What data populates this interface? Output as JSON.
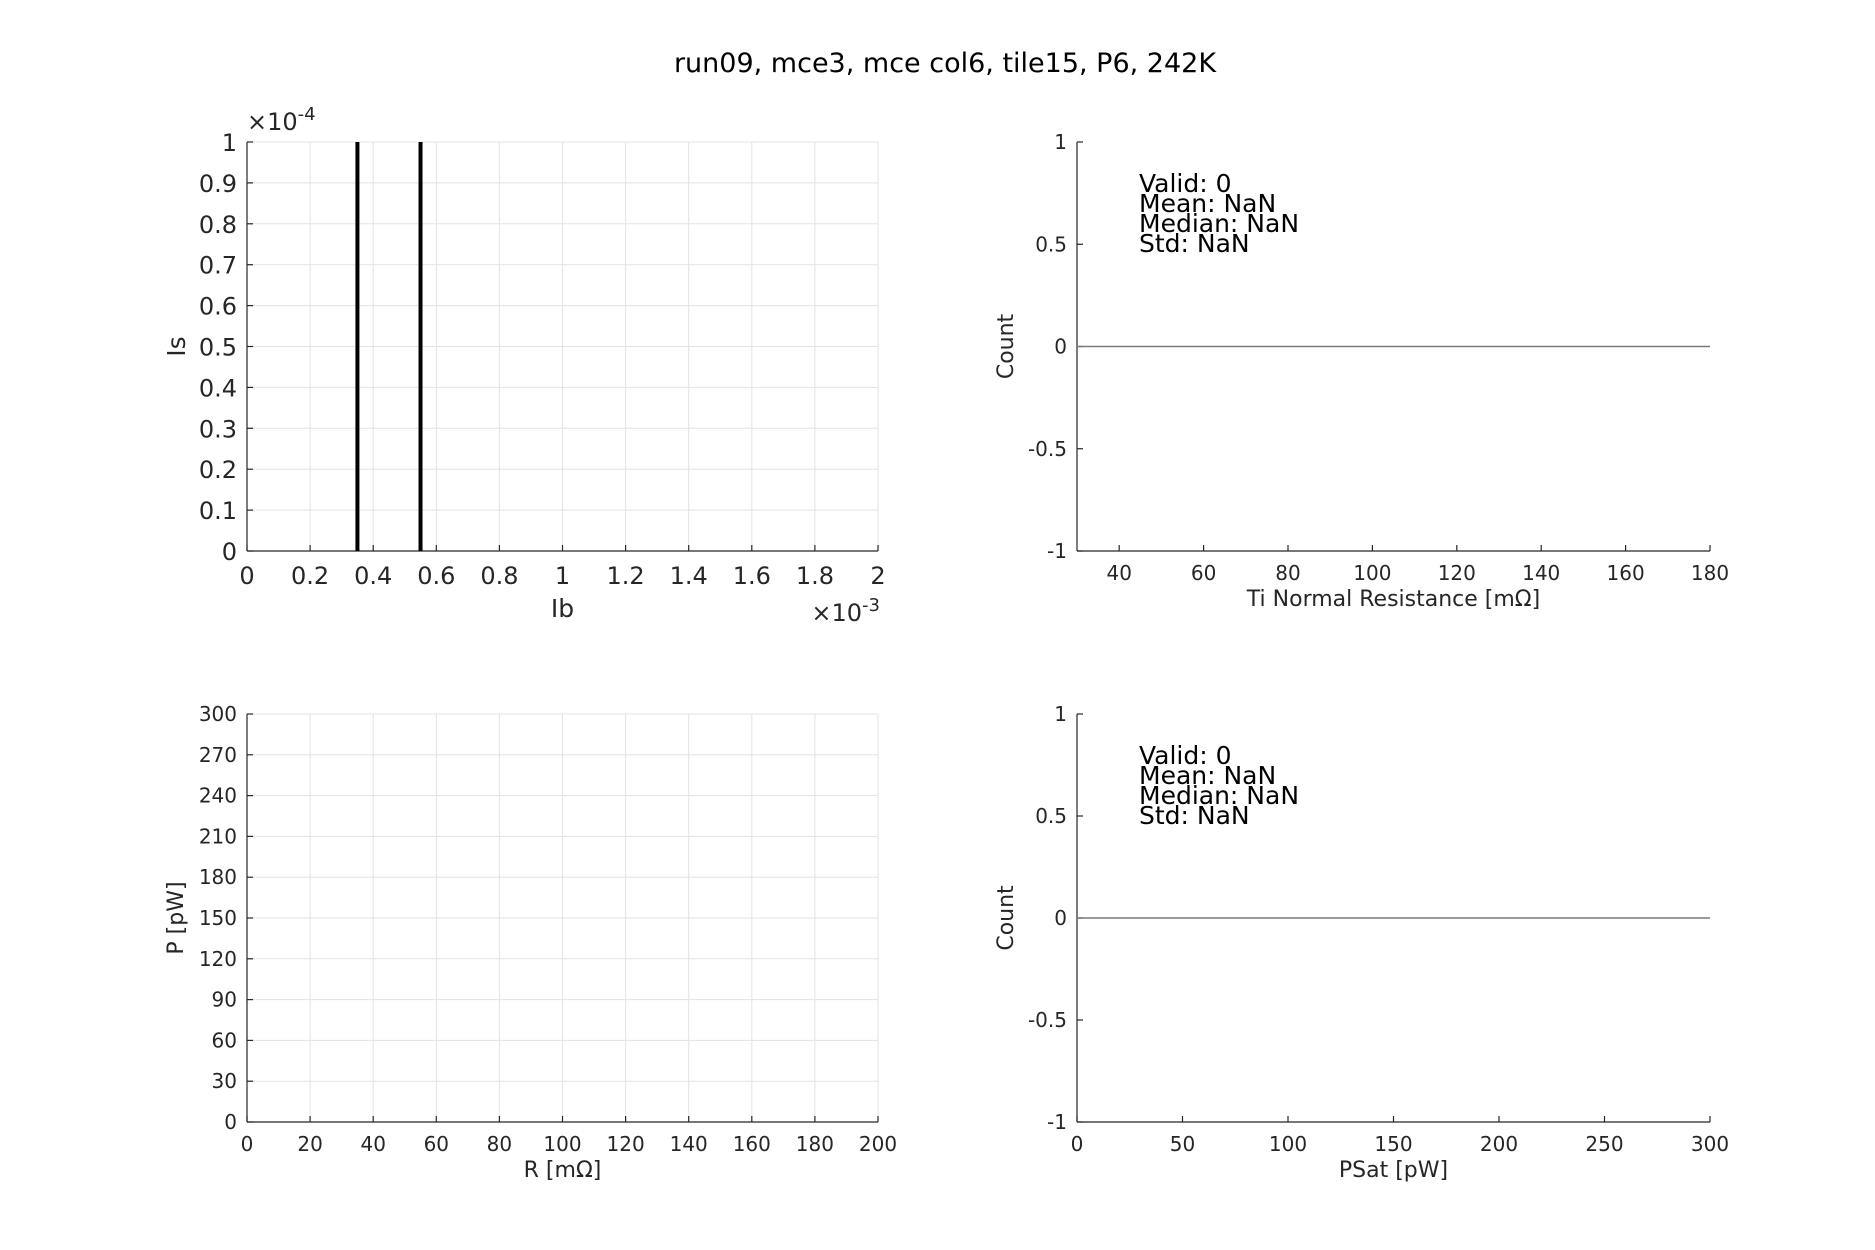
{
  "title": "run09, mce3, mce col6, tile15, P6, 242K",
  "chart_data": [
    {
      "id": "iv",
      "type": "line",
      "title": "",
      "xlabel": "Ib",
      "ylabel": "Is",
      "x_exponent_label": "×10",
      "x_exponent": "-3",
      "y_exponent_label": "×10",
      "y_exponent": "-4",
      "xlim": [
        0,
        2
      ],
      "ylim": [
        0,
        1
      ],
      "xticks": [
        0,
        0.2,
        0.4,
        0.6,
        0.8,
        1,
        1.2,
        1.4,
        1.6,
        1.8,
        2
      ],
      "yticks": [
        0,
        0.1,
        0.2,
        0.3,
        0.4,
        0.5,
        0.6,
        0.7,
        0.8,
        0.9,
        1
      ],
      "xtick_labels": [
        "0",
        "0.2",
        "0.4",
        "0.6",
        "0.8",
        "1",
        "1.2",
        "1.4",
        "1.6",
        "1.8",
        "2"
      ],
      "ytick_labels": [
        "0",
        "0.1",
        "0.2",
        "0.3",
        "0.4",
        "0.5",
        "0.6",
        "0.7",
        "0.8",
        "0.9",
        "1"
      ],
      "grid": true,
      "series": [
        {
          "x": [
            0.35,
            0.35
          ],
          "y": [
            0,
            1
          ],
          "color": "#000000"
        },
        {
          "x": [
            0.55,
            0.55
          ],
          "y": [
            0,
            1
          ],
          "color": "#000000"
        }
      ]
    },
    {
      "id": "rn-hist",
      "type": "bar",
      "title": "",
      "xlabel": "Ti Normal Resistance [mΩ]",
      "ylabel": "Count",
      "xlim": [
        30,
        180
      ],
      "ylim": [
        -1,
        1
      ],
      "xticks": [
        40,
        60,
        80,
        100,
        120,
        140,
        160,
        180
      ],
      "yticks": [
        -1,
        -0.5,
        0,
        0.5,
        1
      ],
      "xtick_labels": [
        "40",
        "60",
        "80",
        "100",
        "120",
        "140",
        "160",
        "180"
      ],
      "ytick_labels": [
        "-1",
        "-0.5",
        "0",
        "0.5",
        "1"
      ],
      "grid": false,
      "baseline": 0,
      "values": [],
      "stats": [
        "Valid: 0",
        "Mean: NaN",
        "Median: NaN",
        "Std: NaN"
      ]
    },
    {
      "id": "pr",
      "type": "line",
      "title": "",
      "xlabel": "R [mΩ]",
      "ylabel": "P [pW]",
      "xlim": [
        0,
        200
      ],
      "ylim": [
        0,
        300
      ],
      "xticks": [
        0,
        20,
        40,
        60,
        80,
        100,
        120,
        140,
        160,
        180,
        200
      ],
      "yticks": [
        0,
        30,
        60,
        90,
        120,
        150,
        180,
        210,
        240,
        270,
        300
      ],
      "xtick_labels": [
        "0",
        "20",
        "40",
        "60",
        "80",
        "100",
        "120",
        "140",
        "160",
        "180",
        "200"
      ],
      "ytick_labels": [
        "0",
        "30",
        "60",
        "90",
        "120",
        "150",
        "180",
        "210",
        "240",
        "270",
        "300"
      ],
      "grid": true,
      "series": []
    },
    {
      "id": "psat-hist",
      "type": "bar",
      "title": "",
      "xlabel": "PSat [pW]",
      "ylabel": "Count",
      "xlim": [
        0,
        300
      ],
      "ylim": [
        -1,
        1
      ],
      "xticks": [
        0,
        50,
        100,
        150,
        200,
        250,
        300
      ],
      "yticks": [
        -1,
        -0.5,
        0,
        0.5,
        1
      ],
      "xtick_labels": [
        "0",
        "50",
        "100",
        "150",
        "200",
        "250",
        "300"
      ],
      "ytick_labels": [
        "-1",
        "-0.5",
        "0",
        "0.5",
        "1"
      ],
      "grid": false,
      "baseline": 0,
      "values": [],
      "stats": [
        "Valid: 0",
        "Mean: NaN",
        "Median: NaN",
        "Std: NaN"
      ]
    }
  ]
}
